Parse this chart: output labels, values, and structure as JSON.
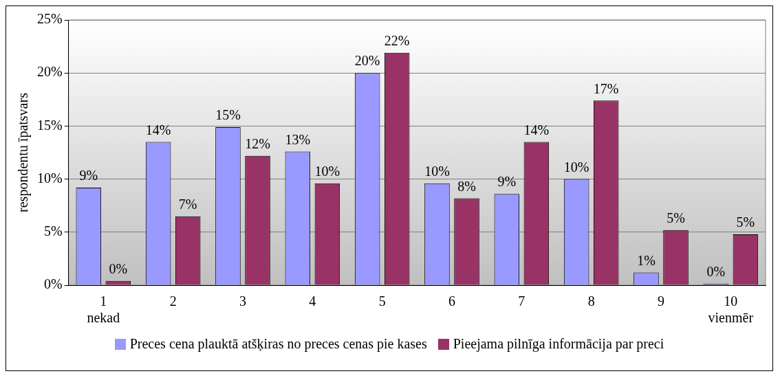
{
  "chart_data": {
    "type": "bar",
    "ylabel": "respondentu īpatsvars",
    "categories": [
      "1\nnekad",
      "2",
      "3",
      "4",
      "5",
      "6",
      "7",
      "8",
      "9",
      "10\nvienmēr"
    ],
    "series": [
      {
        "name": "Preces cena plauktā atšķiras no preces cenas pie kases",
        "color": "#9999ff",
        "values": [
          9.2,
          13.5,
          14.9,
          12.6,
          20.0,
          9.6,
          8.6,
          10.0,
          1.2,
          0
        ],
        "value_labels": [
          "9%",
          "14%",
          "15%",
          "13%",
          "20%",
          "10%",
          "9%",
          "10%",
          "1%",
          "0%"
        ]
      },
      {
        "name": "Pieejama pilnīga informācija par preci",
        "color": "#993366",
        "values": [
          0.4,
          6.5,
          12.2,
          9.6,
          21.9,
          8.2,
          13.5,
          17.4,
          5.2,
          4.8
        ],
        "value_labels": [
          "0%",
          "7%",
          "12%",
          "10%",
          "22%",
          "8%",
          "14%",
          "17%",
          "5%",
          "5%"
        ]
      }
    ],
    "ylim": [
      0,
      25
    ],
    "yticks": [
      {
        "value": 0,
        "label": "0%"
      },
      {
        "value": 5,
        "label": "5%"
      },
      {
        "value": 10,
        "label": "10%"
      },
      {
        "value": 15,
        "label": "15%"
      },
      {
        "value": 20,
        "label": "20%"
      },
      {
        "value": 25,
        "label": "25%"
      }
    ],
    "grid": "y",
    "legend": "bottom"
  }
}
